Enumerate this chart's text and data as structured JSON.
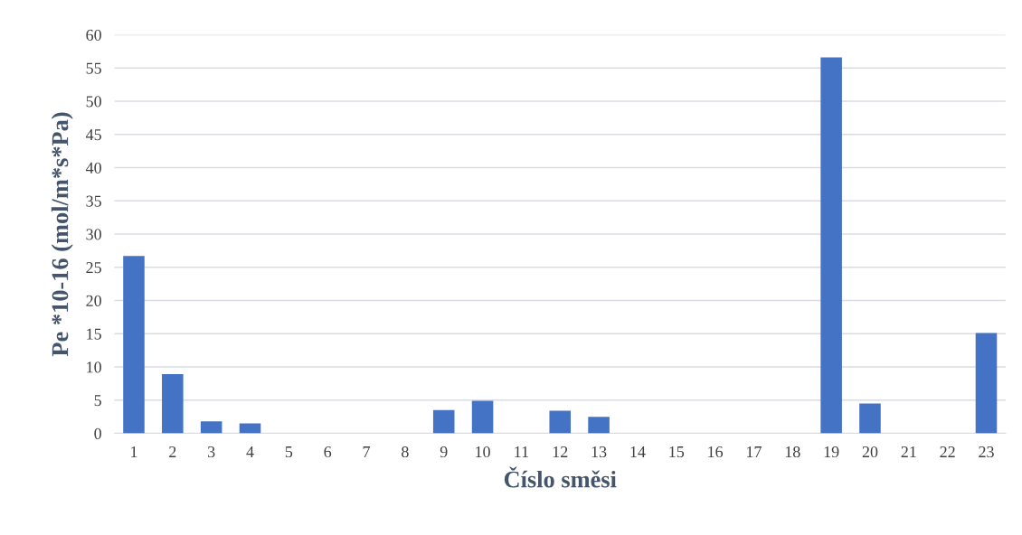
{
  "chart_data": {
    "type": "bar",
    "xlabel": "Číslo směsi",
    "ylabel": "Pe *10-16 (mol/m*s*Pa)",
    "categories": [
      "1",
      "2",
      "3",
      "4",
      "5",
      "6",
      "7",
      "8",
      "9",
      "10",
      "11",
      "12",
      "13",
      "14",
      "15",
      "16",
      "17",
      "18",
      "19",
      "20",
      "21",
      "22",
      "23"
    ],
    "values": [
      26.7,
      8.9,
      1.8,
      1.5,
      0,
      0,
      0,
      0,
      3.5,
      4.9,
      0,
      3.4,
      2.5,
      0,
      0,
      0,
      0,
      0,
      56.6,
      4.5,
      0,
      0,
      15.1
    ],
    "color": "#4472c4",
    "ylim": [
      0,
      60
    ],
    "yticks": [
      0,
      5,
      10,
      15,
      20,
      25,
      30,
      35,
      40,
      45,
      50,
      55,
      60
    ],
    "grid": "y",
    "legend": false
  }
}
